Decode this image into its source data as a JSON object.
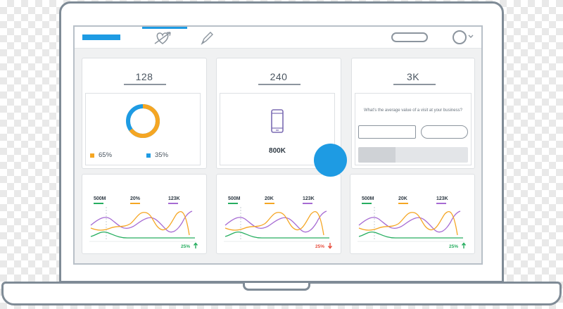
{
  "dashboard": {
    "stats": [
      {
        "value": "128",
        "donut": {
          "percent": 65,
          "primary_color": "#f5a623",
          "secondary_color": "#1e9be3"
        },
        "legend": [
          {
            "label": "65%",
            "color": "#f5a623"
          },
          {
            "label": "35%",
            "color": "#1e9be3"
          }
        ]
      },
      {
        "value": "240",
        "icon": "phone-icon",
        "device_value": "800K"
      },
      {
        "value": "3K",
        "question": "What's the average value of a visit at your business?",
        "progress": 0.34
      }
    ],
    "metric_cards": [
      {
        "labels": [
          "500M",
          "20%",
          "123K"
        ],
        "change": "25%",
        "direction": "up",
        "change_color": "#27ae60"
      },
      {
        "labels": [
          "500M",
          "20K",
          "123K"
        ],
        "change": "25%",
        "direction": "down",
        "change_color": "#e74c3c"
      },
      {
        "labels": [
          "500M",
          "20K",
          "123K"
        ],
        "change": "25%",
        "direction": "up",
        "change_color": "#27ae60"
      }
    ],
    "series_colors": {
      "metric_1": "#27ae60",
      "metric_2": "#f5a623",
      "metric_3": "#a66bd3"
    }
  },
  "topbar": {
    "brand_color": "#1e9be3",
    "tabs": [
      "heart-arrow-icon",
      "pen-icon"
    ],
    "avatar_icon": "avatar-icon"
  },
  "fab": {
    "color": "#1e9be3"
  }
}
